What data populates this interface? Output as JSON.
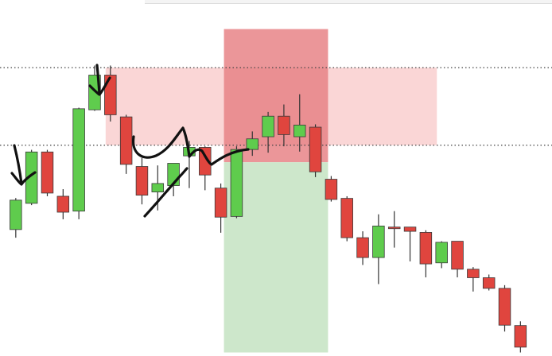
{
  "chart_data": {
    "type": "candlestick",
    "x": [
      1,
      2,
      3,
      4,
      5,
      6,
      7,
      8,
      9,
      10,
      11,
      12,
      13,
      14,
      15,
      16,
      17,
      18,
      19,
      20,
      21,
      22,
      23,
      24,
      25,
      26,
      27,
      28,
      29,
      30,
      31,
      32,
      33
    ],
    "candles": [
      {
        "o": 319.0,
        "h": 327.9,
        "l": 316.7,
        "c": 327.3
      },
      {
        "o": 326.4,
        "h": 341.5,
        "l": 325.9,
        "c": 340.9
      },
      {
        "o": 340.9,
        "h": 341.5,
        "l": 328.4,
        "c": 329.3
      },
      {
        "o": 328.4,
        "h": 330.4,
        "l": 321.9,
        "c": 323.9
      },
      {
        "o": 324.2,
        "h": 353.4,
        "l": 321.9,
        "c": 353.1
      },
      {
        "o": 352.8,
        "h": 365.3,
        "l": 352.5,
        "c": 362.6
      },
      {
        "o": 362.6,
        "h": 365.3,
        "l": 349.5,
        "c": 351.4
      },
      {
        "o": 350.8,
        "h": 351.4,
        "l": 334.7,
        "c": 337.4
      },
      {
        "o": 336.8,
        "h": 339.2,
        "l": 326.1,
        "c": 328.7
      },
      {
        "o": 329.6,
        "h": 337.1,
        "l": 324.4,
        "c": 332.0
      },
      {
        "o": 331.4,
        "h": 337.7,
        "l": 328.4,
        "c": 337.7
      },
      {
        "o": 339.8,
        "h": 344.0,
        "l": 330.7,
        "c": 342.2
      },
      {
        "o": 342.2,
        "h": 342.5,
        "l": 330.1,
        "c": 334.4
      },
      {
        "o": 330.7,
        "h": 332.0,
        "l": 318.1,
        "c": 322.5
      },
      {
        "o": 322.7,
        "h": 342.5,
        "l": 322.2,
        "c": 341.6
      },
      {
        "o": 341.6,
        "h": 346.7,
        "l": 339.8,
        "c": 344.6
      },
      {
        "o": 345.2,
        "h": 352.2,
        "l": 340.7,
        "c": 351.0
      },
      {
        "o": 351.0,
        "h": 354.3,
        "l": 342.5,
        "c": 345.8
      },
      {
        "o": 345.2,
        "h": 357.2,
        "l": 341.0,
        "c": 348.5
      },
      {
        "o": 347.9,
        "h": 348.7,
        "l": 333.8,
        "c": 335.3
      },
      {
        "o": 333.2,
        "h": 334.1,
        "l": 326.9,
        "c": 327.5
      },
      {
        "o": 327.8,
        "h": 328.4,
        "l": 315.7,
        "c": 316.7
      },
      {
        "o": 316.7,
        "h": 318.5,
        "l": 309.0,
        "c": 311.1
      },
      {
        "o": 311.1,
        "h": 323.3,
        "l": 303.6,
        "c": 320.0
      },
      {
        "o": 319.7,
        "h": 324.2,
        "l": 313.9,
        "c": 319.4
      },
      {
        "o": 319.7,
        "h": 319.7,
        "l": 310.0,
        "c": 318.5
      },
      {
        "o": 318.2,
        "h": 318.8,
        "l": 305.5,
        "c": 309.3
      },
      {
        "o": 309.6,
        "h": 315.7,
        "l": 308.1,
        "c": 315.4
      },
      {
        "o": 315.7,
        "h": 315.7,
        "l": 305.5,
        "c": 307.8
      },
      {
        "o": 307.8,
        "h": 308.4,
        "l": 301.5,
        "c": 305.4
      },
      {
        "o": 305.4,
        "h": 306.3,
        "l": 301.8,
        "c": 302.4
      },
      {
        "o": 302.4,
        "h": 303.3,
        "l": 290.2,
        "c": 292.0
      },
      {
        "o": 291.9,
        "h": 293.1,
        "l": 284.3,
        "c": 285.8
      }
    ],
    "horizontal_levels": [
      364.7,
      342.8
    ],
    "zones": [
      {
        "from_x": 6.7,
        "to_x": 27.7,
        "y_low": 342.8,
        "y_high": 364.7,
        "color": "#f5b5b5",
        "opacity": 0.55
      },
      {
        "from_x": 14.2,
        "to_x": 20.8,
        "y_low": 338.0,
        "y_high": 375.6,
        "color": "#e77f82",
        "opacity": 0.82
      },
      {
        "from_x": 14.2,
        "to_x": 20.8,
        "y_low": 284.3,
        "y_high": 338.0,
        "color": "#c8e4c5",
        "opacity": 0.9
      }
    ],
    "colors": {
      "up": "#5fcc4d",
      "down": "#e0453e",
      "wick": "#333333",
      "level": "#444444",
      "ink": "#111111"
    },
    "annotations": [
      "down-arrow",
      "down-arrow",
      "hand-drawn-line"
    ],
    "title": "",
    "xlabel": "",
    "ylabel": "",
    "xlim": [
      0,
      35
    ],
    "ylim": [
      283.3,
      383.8
    ],
    "grid": false
  }
}
